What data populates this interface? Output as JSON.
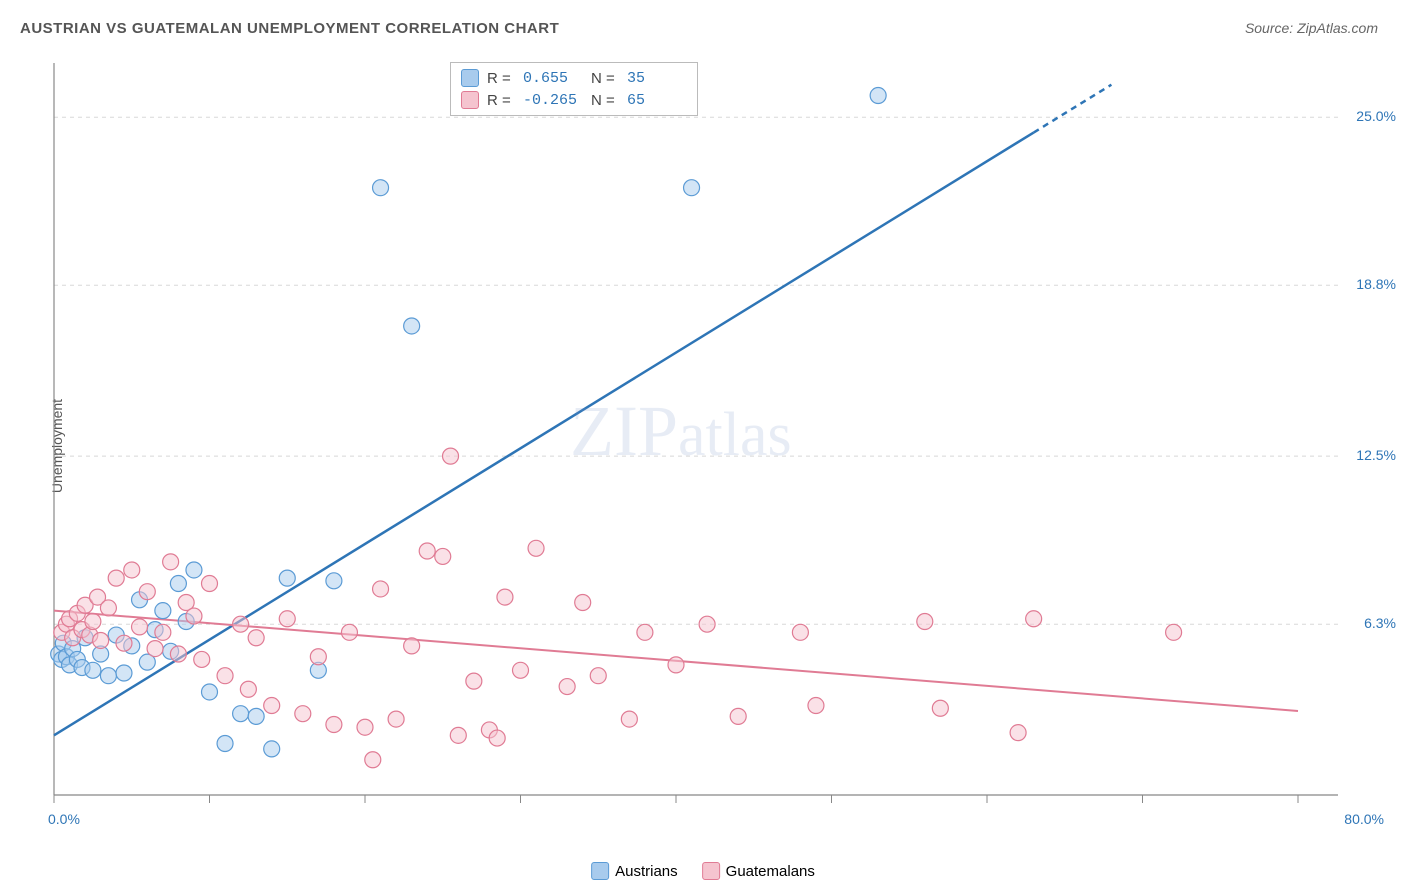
{
  "title": "AUSTRIAN VS GUATEMALAN UNEMPLOYMENT CORRELATION CHART",
  "source": "Source: ZipAtlas.com",
  "ylabel": "Unemployment",
  "watermark_part1": "ZIP",
  "watermark_part2": "atlas",
  "chart": {
    "type": "scatter",
    "xlim": [
      0,
      80
    ],
    "ylim": [
      0,
      27
    ],
    "xtick_positions": [
      0,
      10,
      20,
      30,
      40,
      50,
      60,
      70,
      80
    ],
    "ytick_values": [
      6.3,
      12.5,
      18.8,
      25.0
    ],
    "ytick_labels": [
      "6.3%",
      "12.5%",
      "18.8%",
      "25.0%"
    ],
    "xmin_label": "0.0%",
    "xmax_label": "80.0%",
    "background_color": "#ffffff",
    "grid_color": "#d8d8d8",
    "axis_color": "#888888",
    "marker_radius": 8,
    "marker_opacity": 0.5,
    "series": [
      {
        "name": "Austrians",
        "color": "#5B9BD5",
        "fill": "#a8cbed",
        "stroke": "#5B9BD5",
        "R": "0.655",
        "N": "35",
        "trend": {
          "x1": 0,
          "y1": 2.2,
          "x2": 68,
          "y2": 26.2,
          "color": "#2E75B6",
          "width": 2.5,
          "dash_from_x": 63
        },
        "points": [
          [
            0.3,
            5.2
          ],
          [
            0.5,
            5.0
          ],
          [
            0.6,
            5.6
          ],
          [
            0.8,
            5.1
          ],
          [
            1.0,
            4.8
          ],
          [
            1.2,
            5.4
          ],
          [
            1.5,
            5.0
          ],
          [
            1.8,
            4.7
          ],
          [
            2.0,
            5.8
          ],
          [
            2.5,
            4.6
          ],
          [
            3.0,
            5.2
          ],
          [
            3.5,
            4.4
          ],
          [
            4.0,
            5.9
          ],
          [
            4.5,
            4.5
          ],
          [
            5.0,
            5.5
          ],
          [
            5.5,
            7.2
          ],
          [
            6.0,
            4.9
          ],
          [
            6.5,
            6.1
          ],
          [
            7.0,
            6.8
          ],
          [
            7.5,
            5.3
          ],
          [
            8.0,
            7.8
          ],
          [
            8.5,
            6.4
          ],
          [
            9.0,
            8.3
          ],
          [
            10.0,
            3.8
          ],
          [
            11.0,
            1.9
          ],
          [
            12.0,
            3.0
          ],
          [
            13.0,
            2.9
          ],
          [
            14.0,
            1.7
          ],
          [
            15.0,
            8.0
          ],
          [
            17.0,
            4.6
          ],
          [
            18.0,
            7.9
          ],
          [
            21.0,
            22.4
          ],
          [
            23.0,
            17.3
          ],
          [
            41.0,
            22.4
          ],
          [
            53.0,
            25.8
          ]
        ]
      },
      {
        "name": "Guatemalans",
        "color": "#E89BAE",
        "fill": "#f5c4cf",
        "stroke": "#E07B94",
        "R": "-0.265",
        "N": "65",
        "trend": {
          "x1": 0,
          "y1": 6.8,
          "x2": 80,
          "y2": 3.1,
          "color": "#E07B94",
          "width": 2,
          "dash_from_x": null
        },
        "points": [
          [
            0.5,
            6.0
          ],
          [
            0.8,
            6.3
          ],
          [
            1.0,
            6.5
          ],
          [
            1.2,
            5.8
          ],
          [
            1.5,
            6.7
          ],
          [
            1.8,
            6.1
          ],
          [
            2.0,
            7.0
          ],
          [
            2.3,
            5.9
          ],
          [
            2.5,
            6.4
          ],
          [
            2.8,
            7.3
          ],
          [
            3.0,
            5.7
          ],
          [
            3.5,
            6.9
          ],
          [
            4.0,
            8.0
          ],
          [
            4.5,
            5.6
          ],
          [
            5.0,
            8.3
          ],
          [
            5.5,
            6.2
          ],
          [
            6.0,
            7.5
          ],
          [
            6.5,
            5.4
          ],
          [
            7.0,
            6.0
          ],
          [
            7.5,
            8.6
          ],
          [
            8.0,
            5.2
          ],
          [
            8.5,
            7.1
          ],
          [
            9.0,
            6.6
          ],
          [
            9.5,
            5.0
          ],
          [
            10.0,
            7.8
          ],
          [
            11.0,
            4.4
          ],
          [
            12.0,
            6.3
          ],
          [
            12.5,
            3.9
          ],
          [
            13.0,
            5.8
          ],
          [
            14.0,
            3.3
          ],
          [
            15.0,
            6.5
          ],
          [
            16.0,
            3.0
          ],
          [
            17.0,
            5.1
          ],
          [
            18.0,
            2.6
          ],
          [
            19.0,
            6.0
          ],
          [
            20.0,
            2.5
          ],
          [
            20.5,
            1.3
          ],
          [
            21.0,
            7.6
          ],
          [
            22.0,
            2.8
          ],
          [
            23.0,
            5.5
          ],
          [
            24.0,
            9.0
          ],
          [
            25.0,
            8.8
          ],
          [
            25.5,
            12.5
          ],
          [
            26.0,
            2.2
          ],
          [
            27.0,
            4.2
          ],
          [
            28.0,
            2.4
          ],
          [
            28.5,
            2.1
          ],
          [
            29.0,
            7.3
          ],
          [
            30.0,
            4.6
          ],
          [
            31.0,
            9.1
          ],
          [
            33.0,
            4.0
          ],
          [
            34.0,
            7.1
          ],
          [
            35.0,
            4.4
          ],
          [
            37.0,
            2.8
          ],
          [
            38.0,
            6.0
          ],
          [
            40.0,
            4.8
          ],
          [
            42.0,
            6.3
          ],
          [
            44.0,
            2.9
          ],
          [
            48.0,
            6.0
          ],
          [
            49.0,
            3.3
          ],
          [
            56.0,
            6.4
          ],
          [
            57.0,
            3.2
          ],
          [
            62.0,
            2.3
          ],
          [
            63.0,
            6.5
          ],
          [
            72.0,
            6.0
          ]
        ]
      }
    ]
  },
  "stats_labels": {
    "R": "R  =",
    "N": "N  ="
  },
  "stat_value_color": "#2E75B6",
  "xlegend": [
    {
      "label": "Austrians",
      "fill": "#a8cbed",
      "stroke": "#5B9BD5"
    },
    {
      "label": "Guatemalans",
      "fill": "#f5c4cf",
      "stroke": "#E07B94"
    }
  ]
}
